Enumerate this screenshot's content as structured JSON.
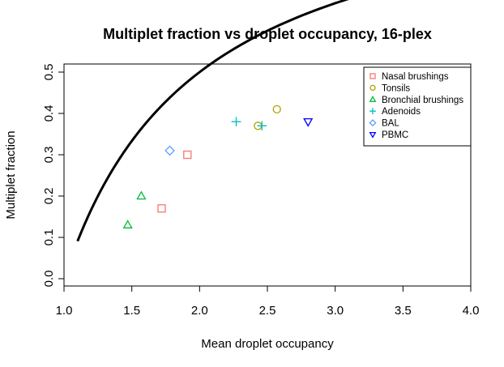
{
  "chart_data": {
    "type": "scatter",
    "title": "Multiplet fraction vs droplet occupancy, 16-plex",
    "xlabel": "Mean droplet occupancy",
    "ylabel": "Multiplet fraction",
    "xlim": [
      1.0,
      4.0
    ],
    "ylim": [
      0.0,
      0.5
    ],
    "xticks": [
      "1.0",
      "1.5",
      "2.0",
      "2.5",
      "3.0",
      "3.5",
      "4.0"
    ],
    "yticks": [
      "0.0",
      "0.1",
      "0.2",
      "0.3",
      "0.4",
      "0.5"
    ],
    "legend_position": "top-right",
    "series": [
      {
        "name": "Nasal brushings",
        "marker": "square",
        "color": "#F8766D",
        "points": [
          {
            "x": 1.72,
            "y": 0.17
          },
          {
            "x": 1.91,
            "y": 0.3
          }
        ]
      },
      {
        "name": "Tonsils",
        "marker": "circle",
        "color": "#B79F00",
        "points": [
          {
            "x": 2.43,
            "y": 0.37
          },
          {
            "x": 2.57,
            "y": 0.41
          }
        ]
      },
      {
        "name": "Bronchial brushings",
        "marker": "triangle-up",
        "color": "#00BA38",
        "points": [
          {
            "x": 1.47,
            "y": 0.13
          },
          {
            "x": 1.57,
            "y": 0.2
          }
        ]
      },
      {
        "name": "Adenoids",
        "marker": "plus",
        "color": "#00BFC4",
        "points": [
          {
            "x": 2.27,
            "y": 0.38
          },
          {
            "x": 2.46,
            "y": 0.37
          }
        ]
      },
      {
        "name": "BAL",
        "marker": "diamond",
        "color": "#619CFF",
        "points": [
          {
            "x": 1.78,
            "y": 0.31
          }
        ]
      },
      {
        "name": "PBMC",
        "marker": "triangle-down",
        "color": "#0000FF",
        "points": [
          {
            "x": 2.8,
            "y": 0.38
          }
        ]
      }
    ],
    "curve": {
      "color": "#000000",
      "description_formula": "1 - 1/x",
      "x_range": [
        1.1,
        4.0
      ]
    }
  }
}
